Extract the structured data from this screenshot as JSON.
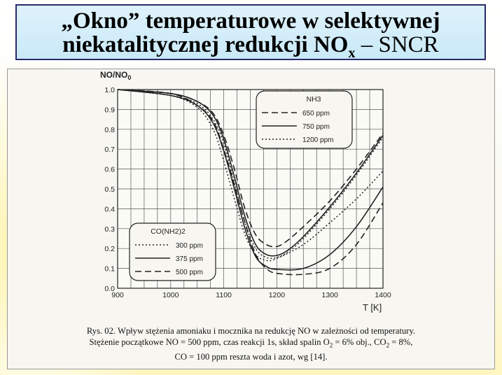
{
  "title": {
    "line1": "„Okno” temperaturowe w selektywnej",
    "line2_main": "niekatalitycznej redukcji NO",
    "line2_sub": "x",
    "line2_tail": " – SNCR"
  },
  "caption": {
    "line1": "Rys. 02. Wpływ stężenia amoniaku i mocznika na redukcję NO w zależności od temperatury.",
    "line2_a": "Stężenie początkowe NO = 500 ppm, czas reakcji 1s, skład spalin O",
    "line2_o2sub": "2",
    "line2_b": " = 6% obj., CO",
    "line2_co2sub": "2",
    "line2_c": " = 8%,",
    "line3": "CO = 100 ppm reszta woda i azot, wg [14]."
  },
  "chart_data": {
    "type": "line",
    "ylabel_main": "NO/NO",
    "ylabel_sub": "0",
    "xlabel": "T  [K]",
    "xlim": [
      900,
      1400
    ],
    "ylim": [
      0.0,
      1.0
    ],
    "xticks": [
      "900",
      "1000",
      "1100",
      "1200",
      "1300",
      "1400"
    ],
    "yticks": [
      "0.0",
      "0.1",
      "0.2",
      "0.3",
      "0.4",
      "0.5",
      "0.6",
      "0.7",
      "0.8",
      "0.9",
      "1.0"
    ],
    "grid": true,
    "legends": [
      {
        "title": "NH3",
        "entries": [
          {
            "label": "650 ppm",
            "style": "dashed"
          },
          {
            "label": "750 ppm",
            "style": "solid"
          },
          {
            "label": "1200 ppm",
            "style": "dotted"
          }
        ]
      },
      {
        "title": "CO(NH2)2",
        "entries": [
          {
            "label": "300 ppm",
            "style": "dotted"
          },
          {
            "label": "375 ppm",
            "style": "solid"
          },
          {
            "label": "500 ppm",
            "style": "dashed"
          }
        ]
      }
    ],
    "series": [
      {
        "group": "NH3",
        "label": "650 ppm",
        "style": "dashed",
        "x": [
          900,
          1000,
          1050,
          1080,
          1100,
          1120,
          1140,
          1160,
          1180,
          1200,
          1220,
          1250,
          1300,
          1350,
          1400
        ],
        "y": [
          1.0,
          0.98,
          0.94,
          0.88,
          0.77,
          0.6,
          0.4,
          0.27,
          0.22,
          0.21,
          0.24,
          0.31,
          0.44,
          0.6,
          0.78
        ]
      },
      {
        "group": "NH3",
        "label": "750 ppm",
        "style": "solid",
        "x": [
          900,
          1000,
          1050,
          1080,
          1100,
          1120,
          1140,
          1160,
          1180,
          1200,
          1220,
          1250,
          1300,
          1350,
          1400
        ],
        "y": [
          1.0,
          0.98,
          0.94,
          0.87,
          0.75,
          0.56,
          0.36,
          0.22,
          0.17,
          0.165,
          0.19,
          0.26,
          0.41,
          0.58,
          0.77
        ]
      },
      {
        "group": "NH3",
        "label": "1200 ppm",
        "style": "dotted",
        "x": [
          900,
          1000,
          1050,
          1080,
          1100,
          1120,
          1140,
          1160,
          1180,
          1200,
          1220,
          1250,
          1300,
          1350,
          1400
        ],
        "y": [
          1.0,
          0.97,
          0.93,
          0.85,
          0.73,
          0.53,
          0.33,
          0.2,
          0.155,
          0.155,
          0.18,
          0.25,
          0.4,
          0.57,
          0.76
        ]
      },
      {
        "group": "CO(NH2)2",
        "label": "300 ppm",
        "style": "dotted",
        "x": [
          900,
          1000,
          1050,
          1080,
          1100,
          1120,
          1140,
          1160,
          1180,
          1200,
          1250,
          1300,
          1350,
          1400
        ],
        "y": [
          1.0,
          0.97,
          0.91,
          0.8,
          0.64,
          0.45,
          0.27,
          0.17,
          0.14,
          0.15,
          0.22,
          0.33,
          0.45,
          0.59
        ]
      },
      {
        "group": "CO(NH2)2",
        "label": "375 ppm",
        "style": "solid",
        "x": [
          900,
          1000,
          1050,
          1080,
          1100,
          1120,
          1140,
          1160,
          1180,
          1200,
          1250,
          1300,
          1350,
          1400
        ],
        "y": [
          1.0,
          0.97,
          0.92,
          0.83,
          0.69,
          0.5,
          0.3,
          0.16,
          0.11,
          0.095,
          0.1,
          0.17,
          0.31,
          0.51
        ]
      },
      {
        "group": "CO(NH2)2",
        "label": "500 ppm",
        "style": "dashed",
        "x": [
          900,
          1000,
          1050,
          1080,
          1100,
          1120,
          1140,
          1160,
          1180,
          1200,
          1250,
          1300,
          1350,
          1400
        ],
        "y": [
          1.0,
          0.98,
          0.92,
          0.84,
          0.7,
          0.52,
          0.33,
          0.17,
          0.1,
          0.075,
          0.07,
          0.1,
          0.22,
          0.43
        ]
      }
    ]
  }
}
